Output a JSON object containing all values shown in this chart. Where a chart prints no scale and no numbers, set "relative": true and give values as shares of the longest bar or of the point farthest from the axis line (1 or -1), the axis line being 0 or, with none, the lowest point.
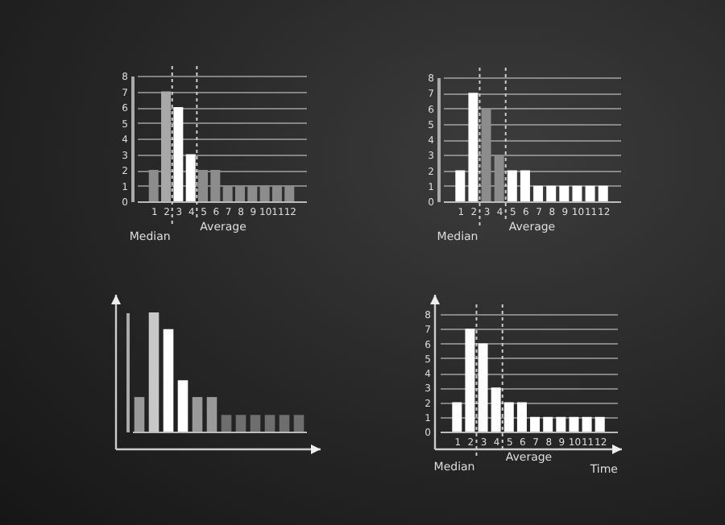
{
  "chart_data": [
    {
      "type": "bar",
      "x": [
        1,
        2,
        3,
        4,
        5,
        6,
        7,
        8,
        9,
        10,
        11,
        12
      ],
      "values": [
        2,
        7,
        6,
        3,
        2,
        2,
        1,
        1,
        1,
        1,
        1,
        1
      ],
      "colors": [
        "#8c8c8c",
        "#a8a8a8",
        "#ffffff",
        "#ffffff",
        "#8c8c8c",
        "#8c8c8c",
        "#8c8c8c",
        "#8c8c8c",
        "#8c8c8c",
        "#8c8c8c",
        "#8c8c8c",
        "#8c8c8c"
      ],
      "xlim": [
        0.3,
        12.7
      ],
      "xticks": [
        1,
        2,
        3,
        4,
        5,
        6,
        7,
        8,
        9,
        10,
        11,
        12
      ],
      "ylim": [
        0,
        8
      ],
      "yticks": [
        0,
        1,
        2,
        3,
        4,
        5,
        6,
        7,
        8
      ],
      "grid": "y",
      "ref_lines": [
        {
          "axis": "x",
          "value": 2.5,
          "label": "Median",
          "line_style": "dashed"
        },
        {
          "axis": "x",
          "value": 4.5,
          "label": "Average",
          "line_style": "dashed"
        }
      ]
    },
    {
      "type": "bar",
      "x": [
        1,
        2,
        3,
        4,
        5,
        6,
        7,
        8,
        9,
        10,
        11,
        12
      ],
      "values": [
        2,
        7,
        6,
        3,
        2,
        2,
        1,
        1,
        1,
        1,
        1,
        1
      ],
      "colors": [
        "#ffffff",
        "#ffffff",
        "#8c8c8c",
        "#8c8c8c",
        "#ffffff",
        "#ffffff",
        "#ffffff",
        "#ffffff",
        "#ffffff",
        "#ffffff",
        "#ffffff",
        "#ffffff"
      ],
      "xlim": [
        0.3,
        12.7
      ],
      "xticks": [
        1,
        2,
        3,
        4,
        5,
        6,
        7,
        8,
        9,
        10,
        11,
        12
      ],
      "ylim": [
        0,
        8
      ],
      "yticks": [
        0,
        1,
        2,
        3,
        4,
        5,
        6,
        7,
        8
      ],
      "grid": "y",
      "ref_lines": [
        {
          "axis": "x",
          "value": 2.5,
          "label": "Median",
          "line_style": "dashed"
        },
        {
          "axis": "x",
          "value": 4.5,
          "label": "Average",
          "line_style": "dashed"
        }
      ]
    },
    {
      "type": "bar",
      "relative": true,
      "categories": [
        null,
        null,
        null,
        null,
        null,
        null,
        null,
        null,
        null,
        null,
        null,
        null
      ],
      "values": [
        0.29,
        1,
        0.86,
        0.43,
        0.29,
        0.29,
        0.14,
        0.14,
        0.14,
        0.14,
        0.14,
        0.14
      ],
      "colors": [
        "#9a9a9a",
        "#c8c8c8",
        "#ffffff",
        "#ffffff",
        "#9a9a9a",
        "#9a9a9a",
        "#6e6e6e",
        "#6e6e6e",
        "#6e6e6e",
        "#6e6e6e",
        "#6e6e6e",
        "#6e6e6e"
      ]
    },
    {
      "type": "bar",
      "x": [
        1,
        2,
        3,
        4,
        5,
        6,
        7,
        8,
        9,
        10,
        11,
        12
      ],
      "values": [
        2,
        7,
        6,
        3,
        2,
        2,
        1,
        1,
        1,
        1,
        1,
        1
      ],
      "color": "#ffffff",
      "xlim": [
        0.3,
        12.7
      ],
      "xticks": [
        1,
        2,
        3,
        4,
        5,
        6,
        7,
        8,
        9,
        10,
        11,
        12
      ],
      "ylim": [
        0,
        8
      ],
      "yticks": [
        0,
        1,
        2,
        3,
        4,
        5,
        6,
        7,
        8
      ],
      "grid": "y",
      "xlabel": "Time",
      "ref_lines": [
        {
          "axis": "x",
          "value": 2.5,
          "label": "Median",
          "line_style": "dashed"
        },
        {
          "axis": "x",
          "value": 4.5,
          "label": "Average",
          "line_style": "dashed"
        }
      ]
    }
  ]
}
